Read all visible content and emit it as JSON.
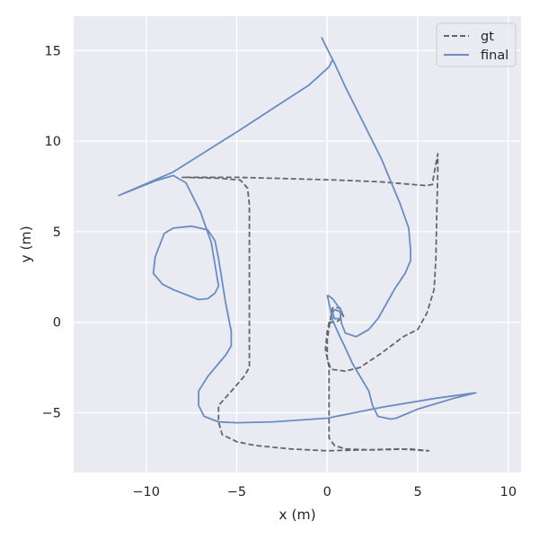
{
  "chart_data": {
    "type": "line",
    "title": "",
    "xlabel": "x (m)",
    "ylabel": "y (m)",
    "xlim": [
      -14.0,
      10.7
    ],
    "ylim": [
      -8.3,
      16.9
    ],
    "x_ticks": [
      -10,
      -5,
      0,
      5,
      10
    ],
    "x_tick_labels": [
      "−10",
      "−5",
      "0",
      "5",
      "10"
    ],
    "y_ticks": [
      -5,
      0,
      5,
      10,
      15
    ],
    "y_tick_labels": [
      "−5",
      "0",
      "5",
      "10",
      "15"
    ],
    "grid": true,
    "background": "#eaeaf2",
    "legend_position": "top-right",
    "series": [
      {
        "name": "gt",
        "color": "#666666",
        "style": "dashed",
        "points": [
          [
            0.1,
            0.0
          ],
          [
            0.5,
            0.0
          ],
          [
            0.9,
            0.3
          ],
          [
            0.7,
            0.8
          ],
          [
            0.3,
            0.8
          ],
          [
            0.2,
            0.3
          ],
          [
            0.1,
            -0.3
          ],
          [
            0.0,
            -1.0
          ],
          [
            0.0,
            -2.0
          ],
          [
            0.2,
            -2.6
          ],
          [
            1.0,
            -2.7
          ],
          [
            1.8,
            -2.5
          ],
          [
            3.0,
            -1.7
          ],
          [
            4.2,
            -0.8
          ],
          [
            5.0,
            -0.4
          ],
          [
            5.5,
            0.5
          ],
          [
            5.9,
            1.8
          ],
          [
            6.0,
            3.5
          ],
          [
            6.05,
            6.0
          ],
          [
            6.1,
            8.2
          ],
          [
            6.1,
            9.3
          ],
          [
            5.9,
            8.2
          ],
          [
            5.8,
            7.6
          ],
          [
            5.4,
            7.55
          ],
          [
            3.0,
            7.75
          ],
          [
            0.5,
            7.85
          ],
          [
            -3.0,
            7.95
          ],
          [
            -5.0,
            8.0
          ],
          [
            -7.5,
            8.0
          ],
          [
            -8.0,
            8.0
          ],
          [
            -6.0,
            7.95
          ],
          [
            -4.8,
            7.85
          ],
          [
            -4.4,
            7.4
          ],
          [
            -4.3,
            6.5
          ],
          [
            -4.3,
            5.5
          ],
          [
            -4.3,
            1.5
          ],
          [
            -4.3,
            -1.0
          ],
          [
            -4.3,
            -2.5
          ],
          [
            -4.6,
            -3.0
          ],
          [
            -5.2,
            -3.7
          ],
          [
            -6.0,
            -4.6
          ],
          [
            -6.0,
            -5.5
          ],
          [
            -5.8,
            -6.2
          ],
          [
            -5.0,
            -6.6
          ],
          [
            -4.0,
            -6.8
          ],
          [
            -2.0,
            -7.0
          ],
          [
            0.0,
            -7.1
          ],
          [
            2.0,
            -7.05
          ],
          [
            4.0,
            -7.0
          ],
          [
            5.6,
            -7.1
          ],
          [
            4.6,
            -7.0
          ],
          [
            2.5,
            -7.05
          ],
          [
            1.0,
            -7.0
          ],
          [
            0.4,
            -6.8
          ],
          [
            0.1,
            -6.4
          ],
          [
            0.1,
            -4.0
          ],
          [
            0.1,
            -2.5
          ],
          [
            -0.1,
            -1.5
          ],
          [
            0.0,
            -0.5
          ],
          [
            0.1,
            0.0
          ]
        ]
      },
      {
        "name": "final",
        "color": "#6b8cbe",
        "style": "solid",
        "points": [
          [
            0.0,
            1.5
          ],
          [
            0.3,
            1.3
          ],
          [
            0.8,
            0.6
          ],
          [
            0.7,
            0.2
          ],
          [
            0.4,
            0.2
          ],
          [
            0.3,
            0.5
          ],
          [
            0.4,
            0.7
          ],
          [
            0.7,
            0.6
          ],
          [
            0.8,
            -0.1
          ],
          [
            1.0,
            -0.6
          ],
          [
            1.6,
            -0.8
          ],
          [
            2.3,
            -0.4
          ],
          [
            2.8,
            0.2
          ],
          [
            3.2,
            0.9
          ],
          [
            3.7,
            1.8
          ],
          [
            4.3,
            2.7
          ],
          [
            4.6,
            3.4
          ],
          [
            4.6,
            4.0
          ],
          [
            4.5,
            5.2
          ],
          [
            4.0,
            6.6
          ],
          [
            3.0,
            9.0
          ],
          [
            1.0,
            13.0
          ],
          [
            0.4,
            14.3
          ],
          [
            0.3,
            14.5
          ],
          [
            -0.3,
            15.7
          ],
          [
            0.3,
            14.5
          ],
          [
            0.1,
            14.1
          ],
          [
            -1.0,
            13.1
          ],
          [
            -3.0,
            11.8
          ],
          [
            -5.0,
            10.5
          ],
          [
            -8.5,
            8.3
          ],
          [
            -11.5,
            7.0
          ],
          [
            -9.5,
            7.8
          ],
          [
            -8.5,
            8.1
          ],
          [
            -7.8,
            7.7
          ],
          [
            -7.0,
            6.1
          ],
          [
            -6.4,
            4.4
          ],
          [
            -6.1,
            2.6
          ],
          [
            -6.0,
            2.0
          ],
          [
            -6.2,
            1.6
          ],
          [
            -6.6,
            1.3
          ],
          [
            -7.1,
            1.25
          ],
          [
            -8.5,
            1.8
          ],
          [
            -9.1,
            2.1
          ],
          [
            -9.6,
            2.7
          ],
          [
            -9.5,
            3.6
          ],
          [
            -9.0,
            4.9
          ],
          [
            -8.5,
            5.2
          ],
          [
            -7.5,
            5.3
          ],
          [
            -6.6,
            5.1
          ],
          [
            -6.2,
            4.5
          ],
          [
            -6.0,
            3.5
          ],
          [
            -5.6,
            1.0
          ],
          [
            -5.3,
            -0.5
          ],
          [
            -5.3,
            -1.3
          ],
          [
            -5.6,
            -1.8
          ],
          [
            -6.6,
            -3.0
          ],
          [
            -7.1,
            -3.8
          ],
          [
            -7.1,
            -4.6
          ],
          [
            -6.8,
            -5.2
          ],
          [
            -6.0,
            -5.5
          ],
          [
            -5.0,
            -5.55
          ],
          [
            -3.0,
            -5.5
          ],
          [
            0.0,
            -5.3
          ],
          [
            3.0,
            -4.7
          ],
          [
            6.0,
            -4.2
          ],
          [
            8.2,
            -3.9
          ],
          [
            7.0,
            -4.2
          ],
          [
            5.0,
            -4.8
          ],
          [
            3.8,
            -5.3
          ],
          [
            3.5,
            -5.35
          ],
          [
            2.8,
            -5.2
          ],
          [
            2.5,
            -4.6
          ],
          [
            2.3,
            -3.8
          ],
          [
            1.4,
            -2.3
          ],
          [
            0.9,
            -1.2
          ],
          [
            0.7,
            -0.8
          ],
          [
            0.3,
            0.1
          ],
          [
            0.0,
            1.5
          ]
        ]
      }
    ]
  }
}
